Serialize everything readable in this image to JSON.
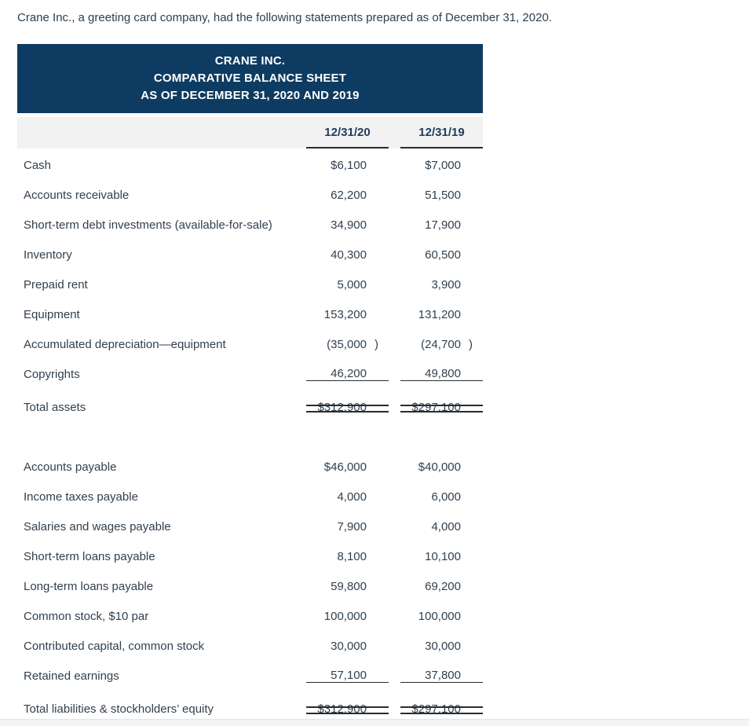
{
  "page": {
    "intro": "Crane Inc., a greeting card company, had the following statements prepared as of December 31, 2020."
  },
  "statement": {
    "title_lines": [
      "CRANE INC.",
      "COMPARATIVE BALANCE SHEET",
      "AS OF DECEMBER 31, 2020 AND 2019"
    ],
    "columns": [
      "12/31/20",
      "12/31/19"
    ],
    "colors": {
      "header_bg": "#0e3b61",
      "header_text": "#ffffff",
      "band_bg": "#f2f2f2",
      "rule": "#2b2b2b"
    },
    "sections": [
      {
        "name": "assets",
        "rows": [
          {
            "label": "Cash",
            "values": [
              "$6,100",
              "$7,000"
            ]
          },
          {
            "label": "Accounts receivable",
            "values": [
              "62,200",
              "51,500"
            ]
          },
          {
            "label": "Short-term debt investments (available-for-sale)",
            "values": [
              "34,900",
              "17,900"
            ]
          },
          {
            "label": "Inventory",
            "values": [
              "40,300",
              "60,500"
            ]
          },
          {
            "label": "Prepaid rent",
            "values": [
              "5,000",
              "3,900"
            ]
          },
          {
            "label": "Equipment",
            "values": [
              "153,200",
              "131,200"
            ]
          },
          {
            "label": "Accumulated depreciation—equipment",
            "values": [
              "(35,000)",
              "(24,700)"
            ]
          },
          {
            "label": "Copyrights",
            "values": [
              "46,200",
              "49,800"
            ],
            "underline": "single"
          },
          {
            "label": "Total assets",
            "values": [
              "$312,900",
              "$297,100"
            ],
            "underline": "double"
          }
        ]
      },
      {
        "name": "liabilities-and-equity",
        "rows": [
          {
            "label": "Accounts payable",
            "values": [
              "$46,000",
              "$40,000"
            ]
          },
          {
            "label": "Income taxes payable",
            "values": [
              "4,000",
              "6,000"
            ]
          },
          {
            "label": "Salaries and wages payable",
            "values": [
              "7,900",
              "4,000"
            ]
          },
          {
            "label": "Short-term loans payable",
            "values": [
              "8,100",
              "10,100"
            ]
          },
          {
            "label": "Long-term loans payable",
            "values": [
              "59,800",
              "69,200"
            ]
          },
          {
            "label": "Common stock, $10 par",
            "values": [
              "100,000",
              "100,000"
            ]
          },
          {
            "label": "Contributed capital, common stock",
            "values": [
              "30,000",
              "30,000"
            ]
          },
          {
            "label": "Retained earnings",
            "values": [
              "57,100",
              "37,800"
            ],
            "underline": "single"
          },
          {
            "label": "Total liabilities & stockholders’ equity",
            "values": [
              "$312,900",
              "$297,100"
            ],
            "underline": "double"
          }
        ]
      }
    ]
  }
}
